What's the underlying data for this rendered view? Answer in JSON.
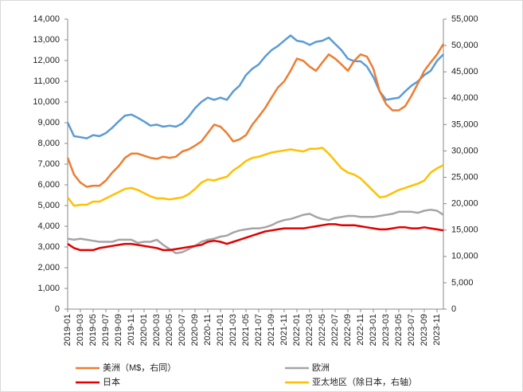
{
  "chart_data": {
    "type": "line",
    "categories": [
      "2019-01",
      null,
      "2019-03",
      null,
      "2019-05",
      null,
      "2019-07",
      null,
      "2019-09",
      null,
      "2019-11",
      null,
      "2020-01",
      null,
      "2020-03",
      null,
      "2020-05",
      null,
      "2020-07",
      null,
      "2020-09",
      null,
      "2020-11",
      null,
      "2021-01",
      null,
      "2021-03",
      null,
      "2021-05",
      null,
      "2021-07",
      null,
      "2021-09",
      null,
      "2021-11",
      null,
      "2022-01",
      null,
      "2022-03",
      null,
      "2022-05",
      null,
      "2022-07",
      null,
      "2022-09",
      null,
      "2022-11",
      null,
      "2023-01",
      null,
      "2023-03",
      null,
      "2023-05",
      null,
      "2023-07",
      null,
      "2023-09",
      null,
      "2023-11",
      null
    ],
    "ylim": [
      0,
      14000
    ],
    "yticks": [
      0,
      {
        "value": 1000,
        "label": "1,000"
      },
      {
        "value": 2000,
        "label": "2,000"
      },
      {
        "value": 3000,
        "label": "3,000"
      },
      {
        "value": 4000,
        "label": "4,000"
      },
      {
        "value": 5000,
        "label": "5,000"
      },
      {
        "value": 6000,
        "label": "6,000"
      },
      {
        "value": 7000,
        "label": "7,000"
      },
      {
        "value": 8000,
        "label": "8,000"
      },
      {
        "value": 9000,
        "label": "9,000"
      },
      {
        "value": 10000,
        "label": "10,000"
      },
      {
        "value": 11000,
        "label": "11,000"
      },
      {
        "value": 12000,
        "label": "12,000"
      },
      {
        "value": 13000,
        "label": "13,000"
      },
      {
        "value": 14000,
        "label": "14,000"
      }
    ],
    "y2lim": [
      0,
      55000
    ],
    "y2ticks": [
      0,
      {
        "value": 5000,
        "label": "5,000"
      },
      {
        "value": 10000,
        "label": "10,000"
      },
      {
        "value": 15000,
        "label": "15,000"
      },
      {
        "value": 20000,
        "label": "20,000"
      },
      {
        "value": 25000,
        "label": "25,000"
      },
      {
        "value": 30000,
        "label": "30,000"
      },
      {
        "value": 35000,
        "label": "35,000"
      },
      {
        "value": 40000,
        "label": "40,000"
      },
      {
        "value": 45000,
        "label": "45,000"
      },
      {
        "value": 50000,
        "label": "50,000"
      },
      {
        "value": 55000,
        "label": "55,000"
      }
    ],
    "grid": false,
    "series": [
      {
        "color": "#5b9bd5",
        "axis": "y2",
        "values": [
          35400,
          32800,
          32600,
          32400,
          33000,
          32800,
          33400,
          34400,
          35600,
          36700,
          36900,
          36300,
          35600,
          34800,
          35000,
          34600,
          34800,
          34600,
          35200,
          36500,
          38100,
          39300,
          40100,
          39700,
          40100,
          39700,
          41300,
          42400,
          44400,
          45600,
          46400,
          47900,
          49100,
          49900,
          50900,
          51900,
          50900,
          50700,
          50100,
          50700,
          50900,
          51500,
          50300,
          49100,
          47500,
          47000,
          47000,
          46000,
          44000,
          41300,
          39700,
          39900,
          40100,
          41300,
          42400,
          43200,
          44400,
          45200,
          47100,
          48300
        ]
      },
      {
        "name": "美洲（M$，右同）",
        "color": "#ed7d31",
        "axis": "y2",
        "values": [
          28700,
          25500,
          24000,
          23200,
          23400,
          23400,
          24400,
          25900,
          27100,
          28700,
          29500,
          29500,
          29100,
          28700,
          28500,
          28900,
          28700,
          28900,
          29900,
          30300,
          31000,
          31800,
          33400,
          35000,
          34600,
          33400,
          31800,
          32200,
          33000,
          35000,
          36500,
          38100,
          40100,
          42000,
          43200,
          45200,
          47500,
          47100,
          46000,
          45200,
          46800,
          48300,
          47500,
          46400,
          45200,
          47100,
          48300,
          47900,
          45600,
          41300,
          38900,
          37700,
          37700,
          38500,
          40500,
          42800,
          45200,
          46800,
          48300,
          50300
        ]
      },
      {
        "name": "欧洲",
        "color": "#a5a5a5",
        "values": [
          3400,
          3350,
          3400,
          3350,
          3300,
          3250,
          3250,
          3250,
          3350,
          3350,
          3350,
          3200,
          3250,
          3250,
          3350,
          3100,
          2900,
          2700,
          2750,
          2900,
          3050,
          3250,
          3350,
          3400,
          3500,
          3550,
          3700,
          3800,
          3850,
          3900,
          3900,
          3950,
          4050,
          4200,
          4300,
          4350,
          4450,
          4550,
          4600,
          4450,
          4350,
          4300,
          4400,
          4450,
          4500,
          4500,
          4450,
          4450,
          4450,
          4500,
          4550,
          4600,
          4700,
          4700,
          4700,
          4650,
          4750,
          4800,
          4750,
          4550
        ]
      },
      {
        "name": "日本",
        "color": "#e00000",
        "values": [
          3150,
          2950,
          2850,
          2850,
          2850,
          2950,
          3000,
          3050,
          3100,
          3150,
          3150,
          3100,
          3050,
          3000,
          2950,
          2850,
          2850,
          2900,
          2950,
          3000,
          3050,
          3100,
          3250,
          3300,
          3250,
          3150,
          3250,
          3350,
          3450,
          3550,
          3650,
          3750,
          3800,
          3850,
          3900,
          3900,
          3900,
          3900,
          3950,
          4000,
          4050,
          4100,
          4100,
          4050,
          4050,
          4050,
          4000,
          3950,
          3900,
          3850,
          3850,
          3900,
          3950,
          3950,
          3900,
          3900,
          3950,
          3900,
          3850,
          3800
        ]
      },
      {
        "name": "亚太地区（除日本，右轴）",
        "color": "#ffc000",
        "axis": "y2",
        "values": [
          21200,
          19600,
          19800,
          19800,
          20400,
          20400,
          21000,
          21600,
          22200,
          22800,
          23000,
          22600,
          22000,
          21400,
          21000,
          21000,
          20800,
          21000,
          21200,
          21800,
          22800,
          24000,
          24600,
          24400,
          24800,
          25100,
          26300,
          27100,
          28100,
          28700,
          28900,
          29300,
          29700,
          29900,
          30100,
          30300,
          30100,
          29900,
          30400,
          30400,
          30600,
          29500,
          28100,
          26700,
          25900,
          25500,
          24800,
          23600,
          22400,
          21200,
          21400,
          22000,
          22600,
          23000,
          23400,
          23800,
          24400,
          25900,
          26700,
          27300
        ]
      }
    ]
  }
}
